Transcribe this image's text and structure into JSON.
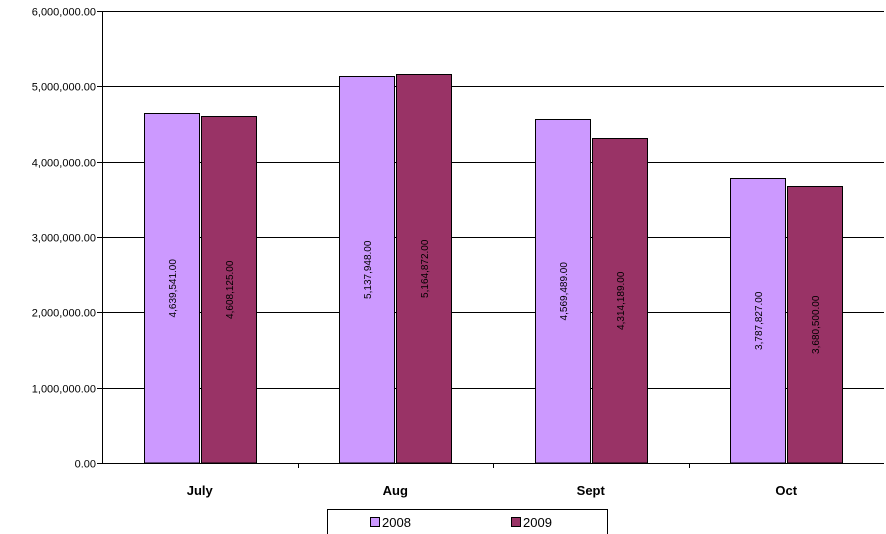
{
  "chart_data": {
    "type": "bar",
    "categories": [
      "July",
      "Aug",
      "Sept",
      "Oct"
    ],
    "series": [
      {
        "name": "2008",
        "color": "#cc99ff",
        "values": [
          4639541.0,
          5137948.0,
          4569489.0,
          3787827.0
        ],
        "labels": [
          "4,639,541.00",
          "5,137,948.00",
          "4,569,489.00",
          "3,787,827.00"
        ]
      },
      {
        "name": "2009",
        "color": "#993366",
        "values": [
          4608125.0,
          5164872.0,
          4314189.0,
          3680500.0
        ],
        "labels": [
          "4,608,125.00",
          "5,164,872.00",
          "4,314,189.00",
          "3,680,500.00"
        ]
      }
    ],
    "yticks": [
      0,
      1000000,
      2000000,
      3000000,
      4000000,
      5000000,
      6000000
    ],
    "ytick_labels": [
      "0.00",
      "1,000,000.00",
      "2,000,000.00",
      "3,000,000.00",
      "4,000,000.00",
      "5,000,000.00",
      "6,000,000.00"
    ],
    "ylim": [
      0,
      6000000
    ],
    "grid": true,
    "legend_position": "bottom",
    "title": "",
    "xlabel": "",
    "ylabel": ""
  }
}
